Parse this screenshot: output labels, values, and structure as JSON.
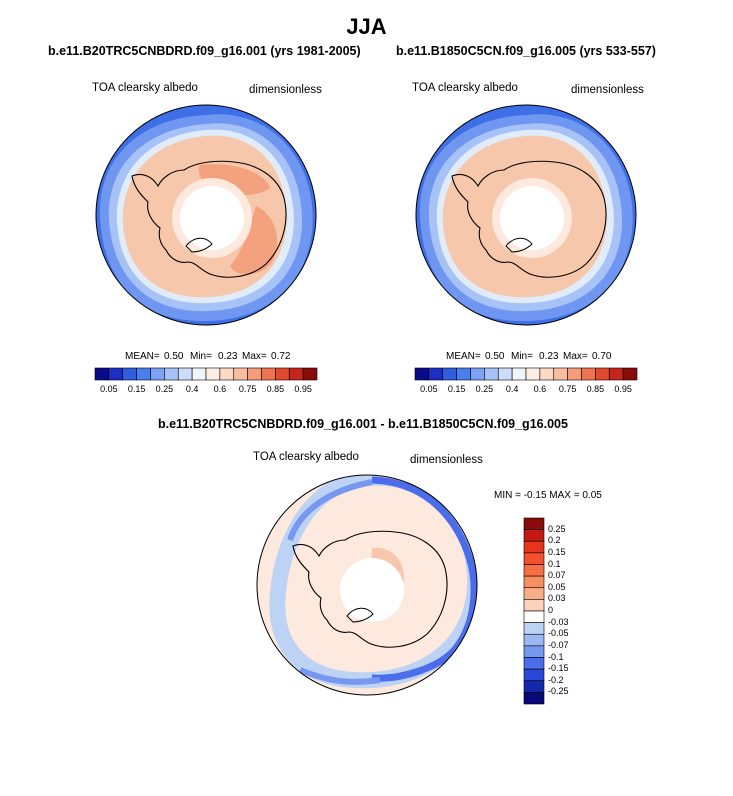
{
  "figure": {
    "season": "JJA",
    "colors": {
      "land_outline": "#000000",
      "background": "#ffffff"
    }
  },
  "chart_data": [
    {
      "type": "heatmap",
      "projection": "south-polar-stereographic",
      "title": "b.e11.B20TRC5CNBDRD.f09_g16.001 (yrs 1981-2005)",
      "left_label": "TOA clearsky albedo",
      "right_label": "dimensionless",
      "stats": {
        "mean_label": "MEAN=",
        "mean": "0.50",
        "min_label": "Min=",
        "min": "0.23",
        "max_label": "Max=",
        "max": "0.72"
      },
      "colorbar": {
        "orientation": "horizontal",
        "ticks": [
          "0.05",
          "0.15",
          "0.25",
          "0.4",
          "0.6",
          "0.75",
          "0.85",
          "0.95"
        ],
        "colors": [
          "#0a0a8c",
          "#1c2fc2",
          "#2e5fe0",
          "#4a7ff0",
          "#7aa2f5",
          "#a6c3f8",
          "#cdddf9",
          "#eef5fb",
          "#fdeee3",
          "#fcd9c5",
          "#f9bea0",
          "#f59d7a",
          "#ef7452",
          "#e04a2e",
          "#c5261a",
          "#8b0a0a"
        ]
      }
    },
    {
      "type": "heatmap",
      "projection": "south-polar-stereographic",
      "title": "b.e11.B1850C5CN.f09_g16.005 (yrs 533-557)",
      "left_label": "TOA clearsky albedo",
      "right_label": "dimensionless",
      "stats": {
        "mean_label": "MEAN=",
        "mean": "0.50",
        "min_label": "Min=",
        "min": "0.23",
        "max_label": "Max=",
        "max": "0.70"
      },
      "colorbar": {
        "orientation": "horizontal",
        "ticks": [
          "0.05",
          "0.15",
          "0.25",
          "0.4",
          "0.6",
          "0.75",
          "0.85",
          "0.95"
        ],
        "colors": [
          "#0a0a8c",
          "#1c2fc2",
          "#2e5fe0",
          "#4a7ff0",
          "#7aa2f5",
          "#a6c3f8",
          "#cdddf9",
          "#eef5fb",
          "#fdeee3",
          "#fcd9c5",
          "#f9bea0",
          "#f59d7a",
          "#ef7452",
          "#e04a2e",
          "#c5261a",
          "#8b0a0a"
        ]
      }
    },
    {
      "type": "heatmap",
      "projection": "south-polar-stereographic",
      "title": "b.e11.B20TRC5CNBDRD.f09_g16.001 - b.e11.B1850C5CN.f09_g16.005",
      "left_label": "TOA clearsky albedo",
      "right_label": "dimensionless",
      "stats": {
        "text": "MIN =  -0.15 MAX =  0.05"
      },
      "colorbar": {
        "orientation": "vertical",
        "ticks": [
          "0.25",
          "0.2",
          "0.15",
          "0.1",
          "0.07",
          "0.05",
          "0.03",
          "0",
          "-0.03",
          "-0.05",
          "-0.07",
          "-0.1",
          "-0.15",
          "-0.2",
          "-0.25"
        ],
        "colors": [
          "#8b0a0a",
          "#c21a10",
          "#e3361c",
          "#f2502c",
          "#f66f45",
          "#f78f63",
          "#f9ae88",
          "#fcd3ba",
          "#ffffff",
          "#bcd3f5",
          "#9bb8f3",
          "#7798f0",
          "#4c6deb",
          "#2848d8",
          "#1329a9",
          "#080a78"
        ]
      }
    }
  ]
}
